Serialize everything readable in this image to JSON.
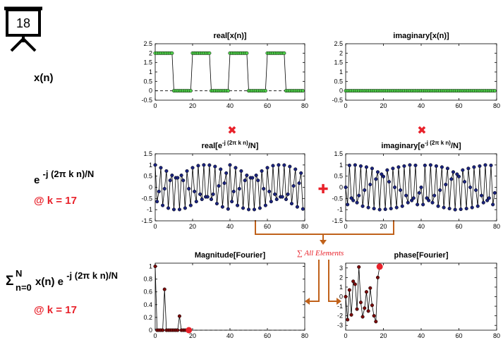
{
  "slide_number": "18",
  "labels": {
    "xn": "x(n)",
    "exp_base": "e",
    "exp_power": "-j (2π k n)/N",
    "k_label_1": "@ k = 17",
    "sum_symbol": "Σ",
    "sum_upper": "N",
    "sum_lower": "n=0",
    "sum_body": "x(n) e",
    "sum_power": "-j (2π k n)/N",
    "k_label_2": "@ k = 17",
    "all_elements": "∑ All Elements"
  },
  "colors": {
    "accent_red": "#e8212a",
    "arrow_orange": "#c0611a",
    "green_marker": "#4fd14a",
    "blue_marker": "#1a237e",
    "dark_red_marker": "#7a0a0a",
    "line": "#000000"
  },
  "operators": {
    "multiply": "✖",
    "plus": "✚"
  },
  "chart_data": [
    {
      "id": "real_x",
      "type": "line",
      "title": "real[x(n)]",
      "xlim": [
        0,
        80
      ],
      "ylim": [
        -0.5,
        2.5
      ],
      "xticks": [
        0,
        20,
        40,
        60,
        80
      ],
      "yticks": [
        -0.5,
        0,
        0.5,
        1,
        1.5,
        2,
        2.5
      ],
      "ytick_labels": [
        "-0.5",
        "0",
        "0.5",
        "1",
        "1.5",
        "2",
        "2.5"
      ],
      "marker_color": "#4fd14a",
      "x": [
        0,
        1,
        2,
        3,
        4,
        5,
        6,
        7,
        8,
        9,
        10,
        11,
        12,
        13,
        14,
        15,
        16,
        17,
        18,
        19,
        20,
        21,
        22,
        23,
        24,
        25,
        26,
        27,
        28,
        29,
        30,
        31,
        32,
        33,
        34,
        35,
        36,
        37,
        38,
        39,
        40,
        41,
        42,
        43,
        44,
        45,
        46,
        47,
        48,
        49,
        50,
        51,
        52,
        53,
        54,
        55,
        56,
        57,
        58,
        59,
        60,
        61,
        62,
        63,
        64,
        65,
        66,
        67,
        68,
        69,
        70,
        71,
        72,
        73,
        74,
        75,
        76,
        77,
        78,
        79
      ],
      "y": [
        2,
        2,
        2,
        2,
        2,
        2,
        2,
        2,
        2,
        2,
        0,
        0,
        0,
        0,
        0,
        0,
        0,
        0,
        0,
        0,
        2,
        2,
        2,
        2,
        2,
        2,
        2,
        2,
        2,
        2,
        0,
        0,
        0,
        0,
        0,
        0,
        0,
        0,
        0,
        0,
        2,
        2,
        2,
        2,
        2,
        2,
        2,
        2,
        2,
        2,
        0,
        0,
        0,
        0,
        0,
        0,
        0,
        0,
        0,
        0,
        2,
        2,
        2,
        2,
        2,
        2,
        2,
        2,
        2,
        2,
        0,
        0,
        0,
        0,
        0,
        0,
        0,
        0,
        0,
        0
      ],
      "zero_line": true
    },
    {
      "id": "imag_x",
      "type": "line",
      "title": "imaginary[x(n)]",
      "xlim": [
        0,
        80
      ],
      "ylim": [
        -0.5,
        2.5
      ],
      "xticks": [
        0,
        20,
        40,
        60,
        80
      ],
      "yticks": [
        -0.5,
        0,
        0.5,
        1,
        1.5,
        2,
        2.5
      ],
      "ytick_labels": [
        "-0.5",
        "0",
        "0.5",
        "1",
        "1.5",
        "2",
        "2.5"
      ],
      "marker_color": "#4fd14a",
      "x": [
        0,
        1,
        2,
        3,
        4,
        5,
        6,
        7,
        8,
        9,
        10,
        11,
        12,
        13,
        14,
        15,
        16,
        17,
        18,
        19,
        20,
        21,
        22,
        23,
        24,
        25,
        26,
        27,
        28,
        29,
        30,
        31,
        32,
        33,
        34,
        35,
        36,
        37,
        38,
        39,
        40,
        41,
        42,
        43,
        44,
        45,
        46,
        47,
        48,
        49,
        50,
        51,
        52,
        53,
        54,
        55,
        56,
        57,
        58,
        59,
        60,
        61,
        62,
        63,
        64,
        65,
        66,
        67,
        68,
        69,
        70,
        71,
        72,
        73,
        74,
        75,
        76,
        77,
        78,
        79
      ],
      "y": [
        0,
        0,
        0,
        0,
        0,
        0,
        0,
        0,
        0,
        0,
        0,
        0,
        0,
        0,
        0,
        0,
        0,
        0,
        0,
        0,
        0,
        0,
        0,
        0,
        0,
        0,
        0,
        0,
        0,
        0,
        0,
        0,
        0,
        0,
        0,
        0,
        0,
        0,
        0,
        0,
        0,
        0,
        0,
        0,
        0,
        0,
        0,
        0,
        0,
        0,
        0,
        0,
        0,
        0,
        0,
        0,
        0,
        0,
        0,
        0,
        0,
        0,
        0,
        0,
        0,
        0,
        0,
        0,
        0,
        0,
        0,
        0,
        0,
        0,
        0,
        0,
        0,
        0,
        0,
        0
      ]
    },
    {
      "id": "real_exp",
      "type": "line",
      "title_base": "real[e",
      "title_power": "-j (2π k n)",
      "title_tail": "/N]",
      "xlim": [
        0,
        80
      ],
      "ylim": [
        -1.5,
        1.5
      ],
      "xticks": [
        0,
        20,
        40,
        60,
        80
      ],
      "yticks": [
        -1.5,
        -1,
        -0.5,
        0,
        0.5,
        1,
        1.5
      ],
      "ytick_labels": [
        "-1.5",
        "-1",
        "-0.5",
        "0",
        "0.5",
        "1",
        "1.5"
      ],
      "marker_color": "#1a237e",
      "x": [
        0,
        1,
        2,
        3,
        4,
        5,
        6,
        7,
        8,
        9,
        10,
        11,
        12,
        13,
        14,
        15,
        16,
        17,
        18,
        19,
        20,
        21,
        22,
        23,
        24,
        25,
        26,
        27,
        28,
        29,
        30,
        31,
        32,
        33,
        34,
        35,
        36,
        37,
        38,
        39,
        40,
        41,
        42,
        43,
        44,
        45,
        46,
        47,
        48,
        49,
        50,
        51,
        52,
        53,
        54,
        55,
        56,
        57,
        58,
        59,
        60,
        61,
        62,
        63,
        64,
        65,
        66,
        67,
        68,
        69,
        70,
        71,
        72,
        73,
        74,
        75,
        76,
        77,
        78,
        79
      ],
      "y": [
        1,
        -0.637,
        -0.187,
        0.876,
        -0.809,
        -0.063,
        0.729,
        -0.93,
        0.309,
        0.536,
        -0.992,
        0.426,
        0.426,
        -0.992,
        0.536,
        0.309,
        -0.93,
        0.729,
        -0.063,
        -0.809,
        0.876,
        -0.187,
        -0.637,
        0.969,
        -0.309,
        -0.536,
        1,
        -0.426,
        -0.426,
        0.992,
        -0.536,
        -0.309,
        0.93,
        -0.729,
        0.063,
        0.809,
        -0.876,
        0.187,
        0.637,
        -0.969,
        1,
        -0.637,
        -0.187,
        0.876,
        -0.809,
        -0.063,
        0.729,
        -0.93,
        0.309,
        0.536,
        -0.992,
        0.426,
        0.426,
        -0.992,
        0.536,
        0.309,
        -0.93,
        0.729,
        -0.063,
        -0.809,
        0.876,
        -0.187,
        -0.637,
        0.969,
        -0.309,
        -0.536,
        1,
        -0.426,
        -0.426,
        0.992,
        -0.536,
        -0.309,
        0.93,
        -0.729,
        0.063,
        0.809,
        -0.876,
        0.187,
        0.637,
        -0.969
      ]
    },
    {
      "id": "imag_exp",
      "type": "line",
      "title_base": "imaginary[e",
      "title_power": "-j (2π k n)",
      "title_tail": "/N]",
      "xlim": [
        0,
        80
      ],
      "ylim": [
        -1.5,
        1.5
      ],
      "xticks": [
        0,
        20,
        40,
        60,
        80
      ],
      "yticks": [
        -1.5,
        -1,
        -0.5,
        0,
        0.5,
        1,
        1.5
      ],
      "ytick_labels": [
        "-1.5",
        "-1",
        "-0.5",
        "0",
        "0.5",
        "1",
        "1.5"
      ],
      "marker_color": "#1a237e",
      "x": [
        0,
        1,
        2,
        3,
        4,
        5,
        6,
        7,
        8,
        9,
        10,
        11,
        12,
        13,
        14,
        15,
        16,
        17,
        18,
        19,
        20,
        21,
        22,
        23,
        24,
        25,
        26,
        27,
        28,
        29,
        30,
        31,
        32,
        33,
        34,
        35,
        36,
        37,
        38,
        39,
        40,
        41,
        42,
        43,
        44,
        45,
        46,
        47,
        48,
        49,
        50,
        51,
        52,
        53,
        54,
        55,
        56,
        57,
        58,
        59,
        60,
        61,
        62,
        63,
        64,
        65,
        66,
        67,
        68,
        69,
        70,
        71,
        72,
        73,
        74,
        75,
        76,
        77,
        78,
        79
      ],
      "y": [
        0,
        -0.771,
        0.982,
        -0.482,
        -0.588,
        0.998,
        -0.685,
        -0.368,
        0.951,
        -0.844,
        -0.125,
        0.905,
        -0.905,
        0.125,
        0.844,
        -0.951,
        0.368,
        0.685,
        -0.998,
        0.588,
        0.482,
        -0.982,
        0.771,
        0.249,
        -0.951,
        0.844,
        0,
        -0.905,
        0.905,
        -0.125,
        -0.844,
        0.951,
        -0.368,
        -0.685,
        0.998,
        -0.588,
        -0.482,
        0.982,
        -0.771,
        -0.249,
        0,
        -0.771,
        0.982,
        -0.482,
        -0.588,
        0.998,
        -0.685,
        -0.368,
        0.951,
        -0.844,
        -0.125,
        0.905,
        -0.905,
        0.125,
        0.844,
        -0.951,
        0.368,
        0.685,
        -0.998,
        0.588,
        0.482,
        -0.982,
        0.771,
        0.249,
        -0.951,
        0.844,
        0,
        -0.905,
        0.905,
        -0.125,
        -0.844,
        0.951,
        -0.368,
        -0.685,
        0.998,
        -0.588,
        -0.482,
        0.982,
        -0.771,
        -0.249
      ]
    },
    {
      "id": "magnitude",
      "type": "line",
      "title": "Magnitude[Fourier]",
      "xlim": [
        0,
        80
      ],
      "ylim": [
        0,
        1.05
      ],
      "xticks": [
        0,
        20,
        40,
        60,
        80
      ],
      "yticks": [
        0,
        0.2,
        0.4,
        0.6,
        0.8,
        1
      ],
      "ytick_labels": [
        "0",
        "0.2",
        "0.4",
        "0.6",
        "0.8",
        "1"
      ],
      "marker_color": "#7a0a0a",
      "x": [
        0,
        1,
        2,
        3,
        4,
        5,
        6,
        7,
        8,
        9,
        10,
        11,
        12,
        13,
        14,
        15,
        16,
        17,
        18
      ],
      "y": [
        1,
        0,
        0,
        0,
        0,
        0.64,
        0,
        0,
        0,
        0,
        0,
        0,
        0,
        0.22,
        0,
        0,
        0,
        0,
        0
      ],
      "highlight": {
        "x": 18,
        "y": 0
      },
      "zero_line": true
    },
    {
      "id": "phase",
      "type": "line",
      "title": "phase[Fourier]",
      "xlim": [
        0,
        80
      ],
      "ylim": [
        -3.5,
        3.5
      ],
      "xticks": [
        0,
        20,
        40,
        60,
        80
      ],
      "yticks": [
        -3,
        -2,
        -1,
        0,
        1,
        2,
        3
      ],
      "ytick_labels": [
        "-3",
        "-2",
        "-1",
        "0",
        "1",
        "2",
        "3"
      ],
      "marker_color": "#7a0a0a",
      "x": [
        0,
        1,
        2,
        3,
        4,
        5,
        6,
        7,
        8,
        9,
        10,
        11,
        12,
        13,
        14,
        15,
        16,
        17,
        18
      ],
      "y": [
        0,
        -2.4,
        0.7,
        -1.9,
        1.6,
        1.3,
        -1.3,
        3.1,
        -0.6,
        -2.1,
        -1.2,
        0.5,
        -1.5,
        0.9,
        -0.9,
        -2.0,
        -2.6,
        2.0,
        3.14
      ],
      "highlight": {
        "x": 18,
        "y": 3.14
      }
    }
  ]
}
